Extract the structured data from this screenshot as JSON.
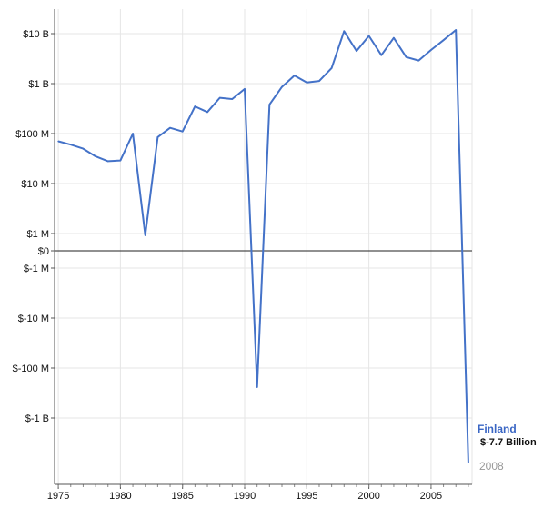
{
  "chart_data": {
    "type": "line",
    "x_ticks": [
      1975,
      1980,
      1985,
      1990,
      1995,
      2000,
      2005
    ],
    "y_ticks": [
      "$10 B",
      "$1 B",
      "$100 M",
      "$10 M",
      "$1 M",
      "$0",
      "$-1 M",
      "$-10 M",
      "$-100 M",
      "$-1 B"
    ],
    "y_scale": "symmetric-log",
    "xlim": [
      1974.7,
      2008.3
    ],
    "grid": true,
    "series": [
      {
        "name": "Finland",
        "color": "#4472c8",
        "x": [
          1975,
          1976,
          1977,
          1978,
          1979,
          1980,
          1981,
          1982,
          1983,
          1984,
          1985,
          1986,
          1987,
          1988,
          1989,
          1990,
          1991,
          1992,
          1993,
          1994,
          1995,
          1996,
          1997,
          1998,
          1999,
          2000,
          2001,
          2002,
          2003,
          2004,
          2005,
          2006,
          2007,
          2008
        ],
        "y": [
          70000000,
          60000000,
          50000000,
          35000000,
          28000000,
          29000000,
          100000000,
          900000,
          85000000,
          130000000,
          110000000,
          350000000,
          270000000,
          520000000,
          490000000,
          780000000,
          -240000000,
          380000000,
          860000000,
          1450000000,
          1050000000,
          1130000000,
          2050000000,
          11200000000,
          4500000000,
          9000000000,
          3700000000,
          8200000000,
          3400000000,
          2900000000,
          4700000000,
          7400000000,
          11800000000,
          -7700000000
        ]
      }
    ],
    "legend": {
      "name": "Finland",
      "value_label": "$-7.7 Billion",
      "year": "2008"
    }
  }
}
